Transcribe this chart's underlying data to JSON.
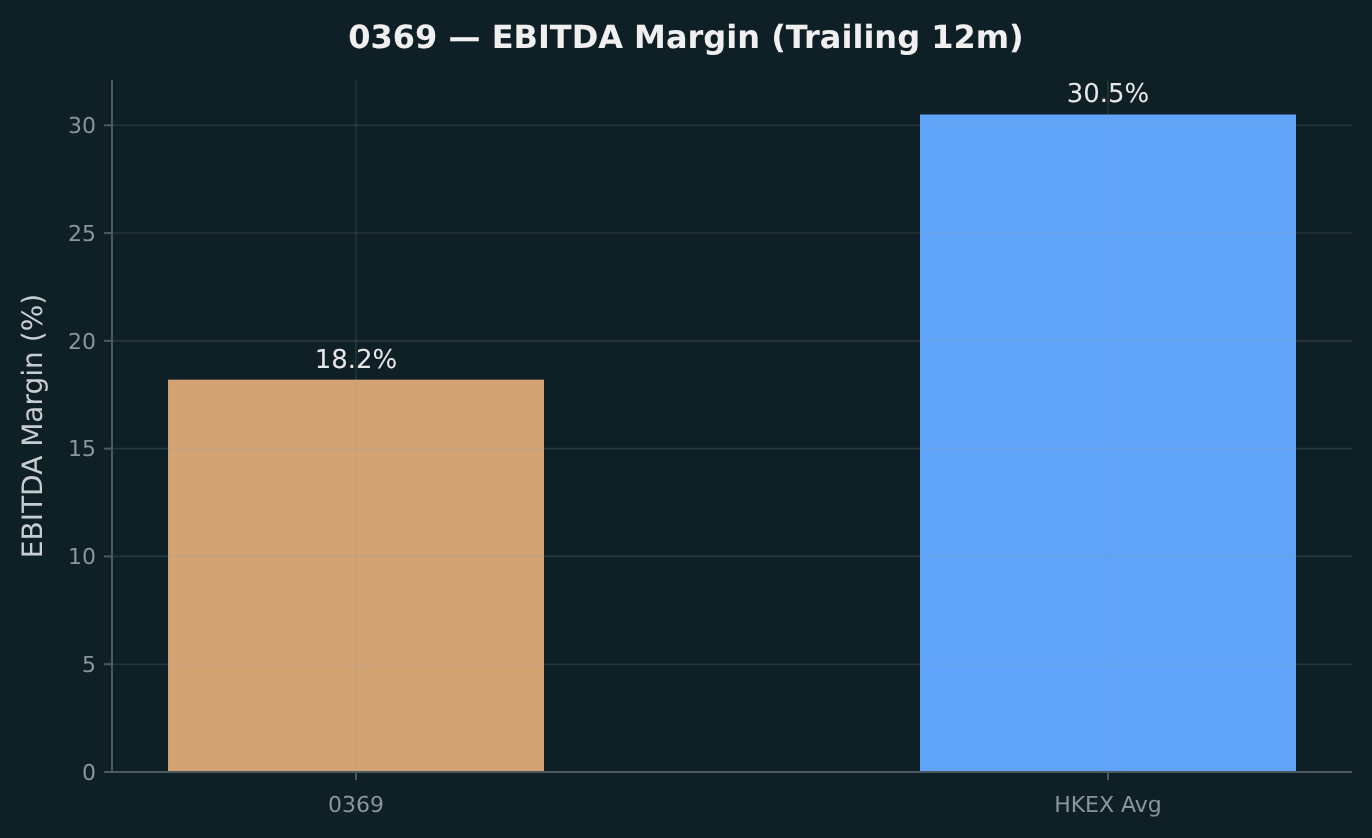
{
  "chart_data": {
    "type": "bar",
    "title": "0369 — EBITDA Margin (Trailing 12m)",
    "ylabel": "EBITDA Margin (%)",
    "categories": [
      "0369",
      "HKEX Avg"
    ],
    "values": [
      18.2,
      30.5
    ],
    "colors": [
      "#d4a373",
      "#60a5fa"
    ],
    "value_labels": [
      "18.2%",
      "30.5%"
    ],
    "ylim": [
      0,
      32.1
    ],
    "yticks": [
      0,
      5,
      10,
      15,
      20,
      25,
      30
    ],
    "grid": true
  }
}
